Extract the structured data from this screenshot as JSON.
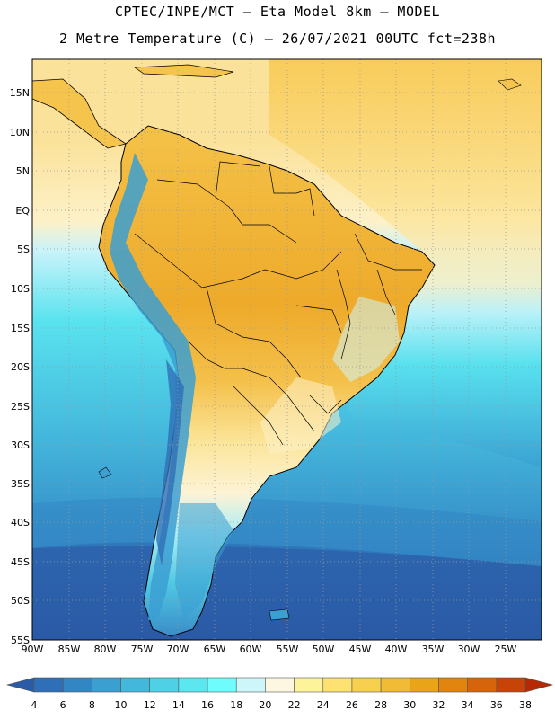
{
  "header": {
    "title_line1": "CPTEC/INPE/MCT –  Eta Model 8km – MODEL",
    "title_line2": "2 Metre Temperature (C) – 26/07/2021 00UTC fct=238h"
  },
  "map": {
    "lat_labels": [
      "15N",
      "10N",
      "5N",
      "EQ",
      "5S",
      "10S",
      "15S",
      "20S",
      "25S",
      "30S",
      "35S",
      "40S",
      "45S",
      "50S",
      "55S"
    ],
    "lon_labels": [
      "90W",
      "85W",
      "80W",
      "75W",
      "70W",
      "65W",
      "60W",
      "55W",
      "50W",
      "45W",
      "40W",
      "35W",
      "30W",
      "25W"
    ],
    "grid": "dotted",
    "colors": {
      "ocean_cold": "#2f6fb7",
      "ocean_mid": "#3aa9d6",
      "ocean_warm": "#5ce6f0",
      "land_hot": "#f0b43c",
      "land_warm": "#f8d470",
      "tropical_sea": "#fbe4a0"
    }
  },
  "colorbar": {
    "labels": [
      "4",
      "6",
      "8",
      "10",
      "12",
      "14",
      "16",
      "18",
      "20",
      "22",
      "24",
      "26",
      "28",
      "30",
      "32",
      "34",
      "36",
      "38"
    ],
    "colors": [
      "#2b5aa6",
      "#2f6fb7",
      "#3386c4",
      "#3b9fd2",
      "#44b7dc",
      "#4fd0e6",
      "#5ce6f0",
      "#6ffcfc",
      "#cdf6fb",
      "#fdf7e2",
      "#fdf39a",
      "#fde271",
      "#f8d050",
      "#f1bb35",
      "#eaa418",
      "#e2850f",
      "#d6640a",
      "#c84307",
      "#b52a04"
    ]
  }
}
